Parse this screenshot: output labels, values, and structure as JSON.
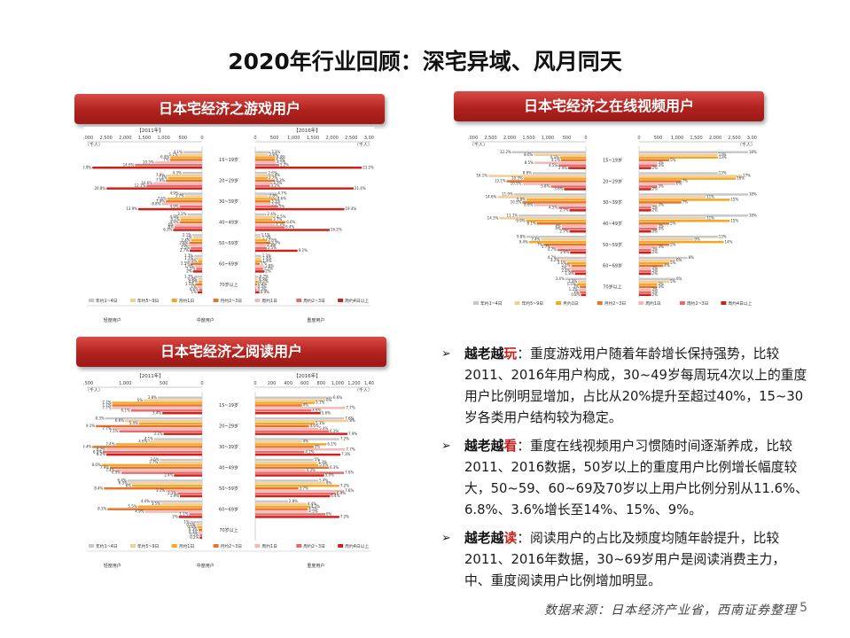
{
  "slide": {
    "title": "2020年行业回顾：深宅异域、风月同天",
    "page_number": "5",
    "source": "数据来源：日本经济产业省，西南证券整理"
  },
  "panels": {
    "game": {
      "title": "日本宅经济之游戏用户"
    },
    "video": {
      "title": "日本宅经济之在线视频用户"
    },
    "reading": {
      "title": "日本宅经济之阅读用户"
    }
  },
  "bullets": [
    {
      "kw1": "越老越",
      "kw2": "玩",
      "text": "：重度游戏用户随着年龄增长保持强势，比较2011、2016年用户构成，30~49岁每周玩4次以上的重度用户比例明显增加，占比从20%提升至超过40%，15~30岁各类用户结构较为稳定。"
    },
    {
      "kw1": "越老越",
      "kw2": "看",
      "text": "：重度在线视频用户习惯随时间逐渐养成，比较2011、2016数据，50岁以上的重度用户比例增长幅度较大，50~59、60~69及70岁以上用户比例分别从11.6%、6.8%、3.6%增长至14%、15%、9%。"
    },
    {
      "kw1": "越老越",
      "kw2": "读",
      "text": "：阅读用户的占比及频度均随年龄提升，比较2011、2016年数据，30~69岁用户是阅读消费主力，中、重度阅读用户比例增加明显。"
    }
  ],
  "chart_data": [
    {
      "type": "bar",
      "name": "game",
      "unit_label": "（千人）",
      "year_labels": [
        "【2011年】",
        "【2016年】"
      ],
      "axis_max": 3000,
      "left_ticks": [
        "3,000",
        "2,500",
        "2,000",
        "1,500",
        "1,000",
        "500",
        "0"
      ],
      "right_ticks": [
        "0",
        "500",
        "1,000",
        "1,500",
        "2,000",
        "2,500",
        "3,000"
      ],
      "categories": [
        "15~19岁",
        "20~29岁",
        "30~39岁",
        "40~49岁",
        "50~59岁",
        "60~69岁",
        "70岁以上"
      ],
      "series_names": [
        "年约1~4日",
        "年约5~9日",
        "月约1日",
        "月约2~3日",
        "周约1日",
        "周约2~3日",
        "周约4日以上"
      ],
      "colors": [
        "#c8c8c8",
        "#f2cd96",
        "#f5a623",
        "#e8742a",
        "#f5b8b8",
        "#e86a6a",
        "#d0201a"
      ],
      "groups": [
        "轻度用户",
        "中度用户",
        "重度用户"
      ],
      "values_2011": [
        [
          4.1,
          5.1,
          6.9,
          7.0,
          10.3,
          14.6,
          23.9
        ],
        [
          4.3,
          7.9,
          7.4,
          7.9,
          10.6,
          12.1,
          20.8
        ],
        [
          4.9,
          3.7,
          7.6,
          7.9,
          8.8,
          4.9,
          13.9
        ],
        [
          3.2,
          4.9,
          4.7,
          4.9,
          6.0,
          6.0,
          6.3
        ],
        [
          2.1,
          2.0,
          2.4,
          2.8,
          3.0,
          2.5,
          2.7
        ],
        [
          1.7,
          1.7,
          0.9,
          2.5,
          1.6,
          1.3,
          2.0
        ],
        [
          1.7,
          0.9,
          0.8,
          1.5,
          1.0,
          0.6,
          1.0
        ]
      ],
      "values_2016": [
        [
          3.3,
          2.8,
          4.4,
          4.3,
          4.5,
          5.2,
          23.2
        ],
        [
          2.6,
          4.0,
          2.7,
          4.3,
          3.7,
          3.2,
          21.4
        ],
        [
          4.7,
          2.8,
          4.6,
          3.3,
          3.3,
          5.0,
          19.4
        ],
        [
          2.4,
          4.5,
          3.7,
          6.6,
          4.3,
          6.4,
          16.2
        ],
        [
          1.1,
          1.3,
          2.6,
          3.3,
          2.3,
          2.5,
          9.2
        ],
        [
          1.3,
          1.4,
          1.4,
          1.0,
          1.9,
          1.7,
          2.0
        ],
        [
          0.7,
          0.5,
          0.7,
          0.4,
          0.3,
          0.3,
          0.9
        ]
      ]
    },
    {
      "type": "bar",
      "name": "video",
      "unit_label": "（千人）",
      "year_labels": [
        "",
        ""
      ],
      "axis_max": 3000,
      "left_ticks": [
        "3,000",
        "2,500",
        "2,000",
        "1,500",
        "1,000",
        "500",
        "0"
      ],
      "right_ticks": [
        "0",
        "500",
        "1,000",
        "1,500",
        "2,000",
        "2,500",
        "3,000"
      ],
      "categories": [
        "15~19岁",
        "20~29岁",
        "30~39岁",
        "40~49岁",
        "50~59岁",
        "60~69岁",
        "70岁以上"
      ],
      "series_names": [
        "年约1~4日",
        "年约5~9日",
        "月约1日",
        "月约2~3日",
        "周约1日",
        "周约2~3日",
        "周约4日以上"
      ],
      "colors": [
        "#c8c8c8",
        "#f2cd96",
        "#f5a623",
        "#e8742a",
        "#f5b8b8",
        "#e86a6a",
        "#d0201a"
      ],
      "groups": [],
      "values_2011": [
        [
          12.2,
          8.6,
          4.3,
          4.1,
          8.5,
          4.5,
          2.9
        ],
        [
          8.8,
          16.1,
          10.3,
          13.1,
          10.5,
          5.8,
          3.6
        ],
        [
          11.9,
          14.6,
          9.8,
          10.5,
          8.6,
          4.5,
          2.7
        ],
        [
          11.1,
          14.3,
          9.9,
          8.1,
          4.0,
          4.0,
          2.7
        ],
        [
          9.8,
          7.4,
          9.4,
          7.0,
          5.7,
          4.7,
          2.6
        ],
        [
          4.7,
          4.2,
          3.1,
          2.4,
          3.0,
          2.4,
          1.8
        ],
        [
          3.4,
          1.3,
          1.5,
          1.0,
          1.2,
          1.0,
          0.8
        ]
      ],
      "values_2016": [
        [
          18,
          13,
          13,
          5,
          3,
          3,
          2
        ],
        [
          13,
          17,
          16,
          7,
          6,
          3,
          2
        ],
        [
          18,
          11,
          15,
          7,
          3,
          2,
          2
        ],
        [
          18,
          11,
          15,
          5,
          3,
          3,
          2
        ],
        [
          13,
          9,
          14,
          5,
          3,
          2,
          2
        ],
        [
          8,
          6,
          5,
          4,
          2,
          2,
          2
        ],
        [
          6,
          5,
          3,
          3,
          2,
          2,
          2
        ]
      ]
    },
    {
      "type": "bar",
      "name": "reading",
      "unit_label": "（千人）",
      "year_labels": [
        "【2011年】",
        "【2016年】"
      ],
      "axis_max": 1500,
      "left_ticks": [
        "1,500",
        "1,000",
        "500",
        "0"
      ],
      "right_ticks": [
        "0",
        "200",
        "400",
        "600",
        "800",
        "1,000",
        "1,200",
        "1,400"
      ],
      "categories": [
        "15~19岁",
        "20~29岁",
        "30~39岁",
        "40~49岁",
        "50~59岁",
        "60~69岁",
        "70岁以上"
      ],
      "series_names": [
        "年约1~4日",
        "年约5~9日",
        "月约1日",
        "月约2~3日",
        "周约1日",
        "周约2~3日",
        "周约4日以上"
      ],
      "colors": [
        "#c8c8c8",
        "#f2cd96",
        "#f5a623",
        "#e8742a",
        "#f5b8b8",
        "#e86a6a",
        "#d0201a"
      ],
      "groups": [
        "轻度用户",
        "中度用户",
        "重度用户"
      ],
      "values_2011": [
        [
          3.8,
          5.0,
          7.7,
          7.7,
          7.7,
          6.1,
          3.4
        ],
        [
          8.3,
          6.6,
          5.4,
          9.1,
          7.7,
          7.1,
          3.3
        ],
        [
          4.1,
          4.6,
          7.4,
          9.4,
          8.2,
          8.5,
          8.2
        ],
        [
          3.6,
          3.7,
          8.6,
          7.9,
          7.4,
          6.9,
          2.4
        ],
        [
          6.4,
          6.3,
          6.0,
          8.4,
          3.1,
          2.1,
          1.9
        ],
        [
          4.4,
          3.5,
          5.5,
          8.1,
          4.9,
          1.1,
          2.0
        ],
        [
          1.0,
          0.5,
          0.4,
          0.3,
          0.3,
          0.2,
          0.2
        ]
      ],
      "values_2016": [
        [
          6.6,
          6.0,
          5.1,
          4.0,
          7.7,
          4.8,
          5.6
        ],
        [
          7.6,
          8.0,
          5.1,
          4.6,
          5.4,
          6.3,
          7.9
        ],
        [
          7.2,
          4.0,
          6.1,
          5.0,
          7.7,
          4.2,
          7.3
        ],
        [
          5.0,
          5.3,
          5.4,
          6.3,
          4.3,
          7.6,
          5.9
        ],
        [
          5.4,
          6.0,
          7.2,
          3.7,
          7.6,
          6.9,
          6.4
        ],
        [
          2.8,
          4.4,
          4.7,
          4.5,
          4.5,
          6.0,
          7.2
        ],
        [
          0.0,
          0.0,
          0.0,
          0.0,
          0.0,
          0.0,
          0.0
        ]
      ]
    }
  ]
}
